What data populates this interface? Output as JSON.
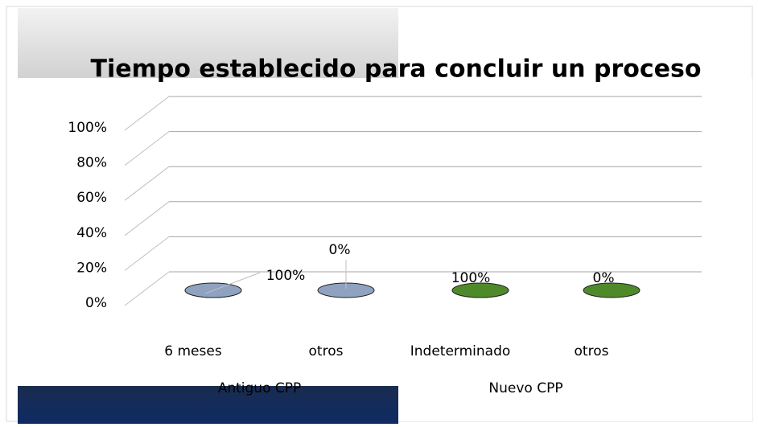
{
  "chart_data": {
    "type": "bar3d",
    "title": "Tiempo establecido para concluir un proceso",
    "categories": [
      "6 meses",
      "otros",
      "Indeterminado",
      "otros"
    ],
    "groups": [
      "Antiguo CPP",
      "Nuevo CPP"
    ],
    "values": [
      100,
      0,
      100,
      0
    ],
    "value_labels": [
      "100%",
      "0%",
      "100%",
      "0%"
    ],
    "colors": [
      "#8fa3c0",
      "#8fa3c0",
      "#4f8a2a",
      "#4f8a2a"
    ],
    "ylim": [
      0,
      100
    ],
    "yticks": [
      {
        "value": 0,
        "label": "0%"
      },
      {
        "value": 20,
        "label": "20%"
      },
      {
        "value": 40,
        "label": "40%"
      },
      {
        "value": 60,
        "label": "60%"
      },
      {
        "value": 80,
        "label": "80%"
      },
      {
        "value": 100,
        "label": "100%"
      }
    ],
    "grid": true
  }
}
